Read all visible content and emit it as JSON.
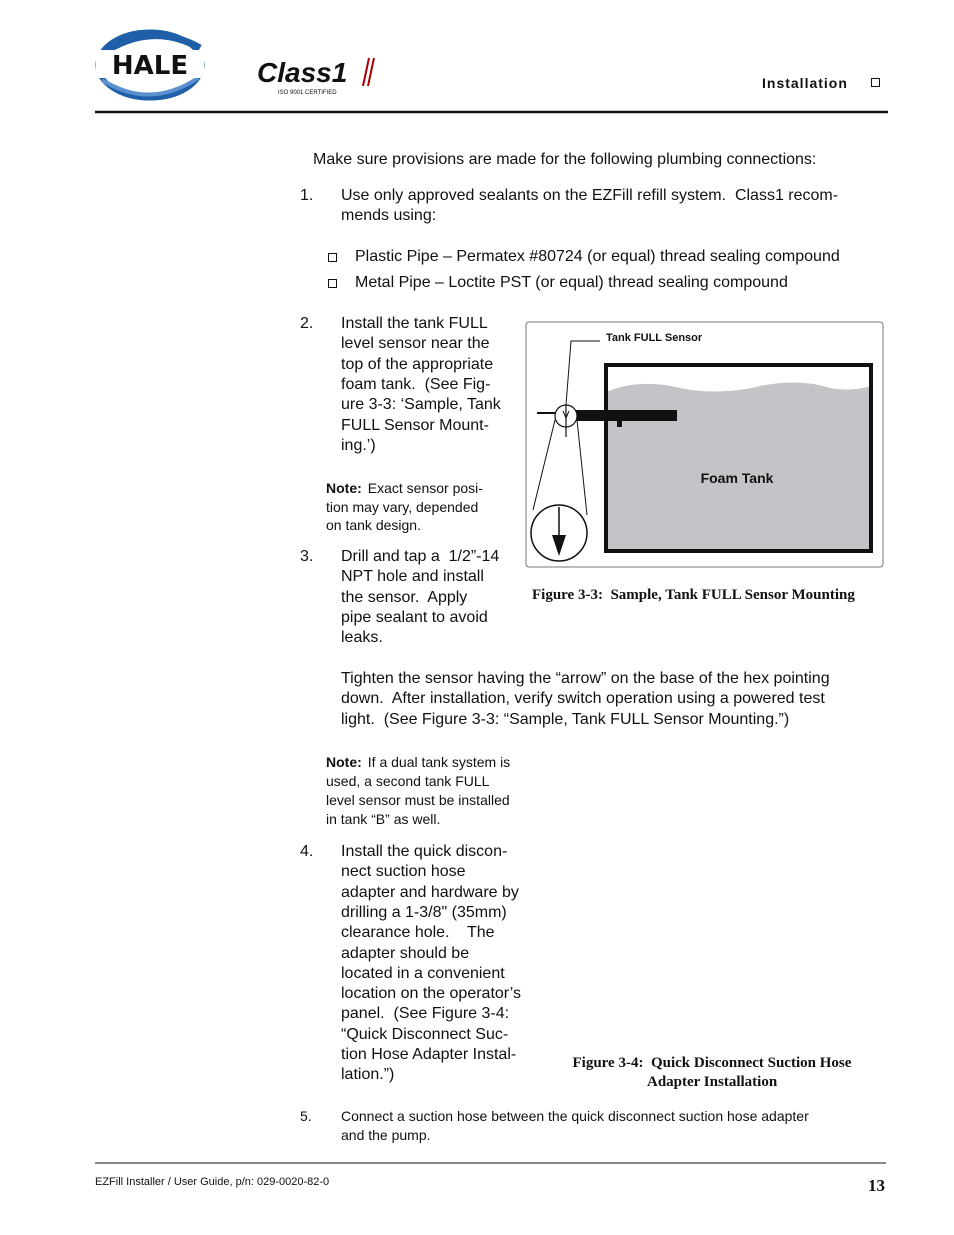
{
  "header": {
    "brand": "HALE",
    "product": "Class1",
    "certification": "ISO 9001 CERTIFIED",
    "section": "Installation"
  },
  "intro": "Make sure provisions are made for the following plumbing connections:",
  "steps": [
    {
      "number": "1.",
      "lines": [
        "Use only approved sealants on the EZFill refill system.  Class1 recom-",
        "mends using:"
      ],
      "bullets": [
        "Plastic Pipe – Permatex #80724 (or equal) thread sealing compound",
        "Metal Pipe – Loctite PST (or equal) thread sealing compound"
      ]
    },
    {
      "number": "2.",
      "lines": [
        "Install the tank FULL",
        "level sensor near the",
        "top of the appropriate",
        "foam tank.  (See Fig-",
        "ure 3-3: ‘Sample, Tank",
        "FULL Sensor Mount-",
        "ing.’)"
      ],
      "note": {
        "label": "Note:",
        "lines": [
          "Exact sensor posi-",
          "tion may vary, depended",
          "on tank design."
        ]
      }
    },
    {
      "number": "3.",
      "lines": [
        "Drill and tap a  1/2”-14",
        "NPT hole and install",
        "the sensor.  Apply",
        "pipe sealant to avoid",
        "leaks."
      ],
      "continuation": [
        "Tighten the sensor having the “arrow” on the base of the hex pointing",
        "down.  After installation, verify switch operation using a powered test",
        "light.  (See Figure 3-3: “Sample, Tank FULL Sensor Mounting.”)"
      ],
      "note": {
        "label": "Note:",
        "lines": [
          "If a dual tank system is",
          "used, a second tank FULL",
          "level sensor must be installed",
          "in tank “B” as well."
        ]
      }
    },
    {
      "number": "4.",
      "lines": [
        "Install the quick discon-",
        "nect suction hose",
        "adapter and hardware by",
        "drilling a 1-3/8\" (35mm)",
        "clearance hole.    The",
        "adapter should be",
        "located in a convenient",
        "location on the operator’s",
        "panel.  (See Figure 3-4:",
        "“Quick Disconnect Suc-",
        "tion Hose Adapter Instal-",
        "lation.”)"
      ]
    },
    {
      "number": "5.",
      "lines": [
        "Connect a suction hose between the quick disconnect suction hose adapter",
        "and the pump."
      ]
    }
  ],
  "figures": [
    {
      "labels": [
        "Tank FULL Sensor",
        "Foam Tank"
      ],
      "caption": [
        "Figure 3-3:  Sample, Tank FULL Sensor Mounting"
      ]
    },
    {
      "caption": [
        "Figure 3-4:  Quick Disconnect Suction Hose",
        "Adapter Installation"
      ]
    }
  ],
  "footer": {
    "document": "EZFill Installer / User Guide, p/n: 029-0020-82-0",
    "page": "13"
  }
}
